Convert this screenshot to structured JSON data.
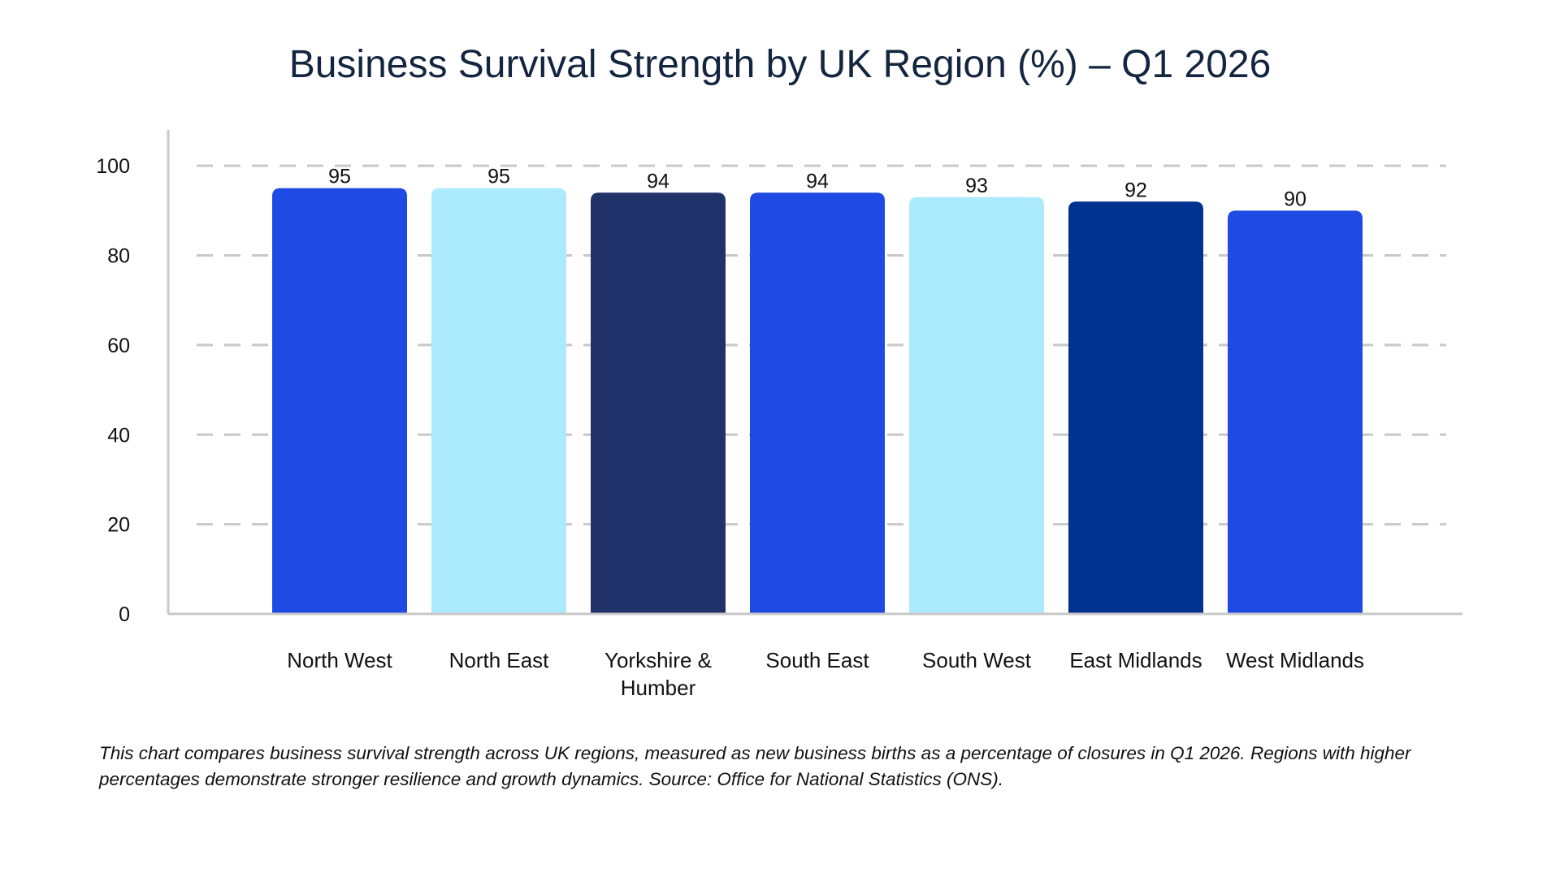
{
  "chart_data": {
    "type": "bar",
    "title": "Business Survival Strength by UK Region (%) – Q1 2026",
    "categories": [
      "North West",
      "North East",
      "Yorkshire & Humber",
      "South East",
      "South West",
      "East Midlands",
      "West Midlands"
    ],
    "category_lines": [
      [
        "North West"
      ],
      [
        "North East"
      ],
      [
        "Yorkshire &",
        "Humber"
      ],
      [
        "South East"
      ],
      [
        "South West"
      ],
      [
        "East Midlands"
      ],
      [
        "West Midlands"
      ]
    ],
    "series": [
      {
        "values": [
          95,
          95,
          94,
          94,
          93,
          92,
          90
        ]
      }
    ],
    "bar_colors": [
      "#1f4ae3",
      "#acebfd",
      "#21316a",
      "#1f4ae3",
      "#acebfd",
      "#003290",
      "#1f4ae3"
    ],
    "data_labels": [
      "95",
      "95",
      "94",
      "94",
      "93",
      "92",
      "90"
    ],
    "yticks": [
      0,
      20,
      40,
      60,
      80,
      100
    ],
    "ylim": [
      0,
      108
    ],
    "grid": true,
    "xlabel": "",
    "ylabel": ""
  },
  "caption": "This chart compares business survival strength across UK regions, measured as new business births as a percentage of closures in Q1 2026. Regions with higher percentages demonstrate stronger resilience and growth dynamics. Source: Office for National Statistics (ONS)."
}
